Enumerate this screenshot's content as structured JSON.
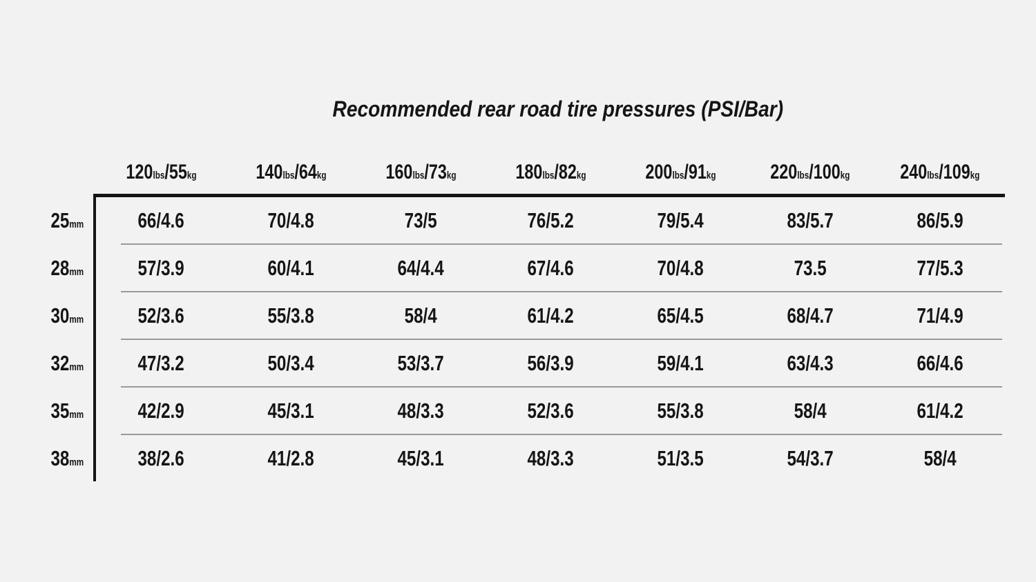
{
  "title": "Recommended rear road tire pressures (PSI/Bar)",
  "units": {
    "pounds": "lbs",
    "kilograms": "kg",
    "millimeters": "mm"
  },
  "columns": [
    {
      "lb": "120",
      "kg": "55"
    },
    {
      "lb": "140",
      "kg": "64"
    },
    {
      "lb": "160",
      "kg": "73"
    },
    {
      "lb": "180",
      "kg": "82"
    },
    {
      "lb": "200",
      "kg": "91"
    },
    {
      "lb": "220",
      "kg": "100"
    },
    {
      "lb": "240",
      "kg": "109"
    }
  ],
  "row_sizes": [
    "25",
    "28",
    "30",
    "32",
    "35",
    "38"
  ],
  "colors": {
    "background": "#f2f2f2",
    "text": "#151515",
    "rule_black": "#151515",
    "rule_gray": "#999999"
  },
  "chart_data": {
    "type": "table",
    "title": "Recommended rear road tire pressures (PSI/Bar)",
    "columns": [
      "120lbs/55kg",
      "140lbs/64kg",
      "160lbs/73kg",
      "180lbs/82kg",
      "200lbs/91kg",
      "220lbs/100kg",
      "240lbs/109kg"
    ],
    "rows": [
      "25mm",
      "28mm",
      "30mm",
      "32mm",
      "35mm",
      "38mm"
    ],
    "values": [
      [
        "66/4.6",
        "70/4.8",
        "73/5",
        "76/5.2",
        "79/5.4",
        "83/5.7",
        "86/5.9"
      ],
      [
        "57/3.9",
        "60/4.1",
        "64/4.4",
        "67/4.6",
        "70/4.8",
        "73.5",
        "77/5.3"
      ],
      [
        "52/3.6",
        "55/3.8",
        "58/4",
        "61/4.2",
        "65/4.5",
        "68/4.7",
        "71/4.9"
      ],
      [
        "47/3.2",
        "50/3.4",
        "53/3.7",
        "56/3.9",
        "59/4.1",
        "63/4.3",
        "66/4.6"
      ],
      [
        "42/2.9",
        "45/3.1",
        "48/3.3",
        "52/3.6",
        "55/3.8",
        "58/4",
        "61/4.2"
      ],
      [
        "38/2.6",
        "41/2.8",
        "45/3.1",
        "48/3.3",
        "51/3.5",
        "54/3.7",
        "58/4"
      ]
    ]
  }
}
